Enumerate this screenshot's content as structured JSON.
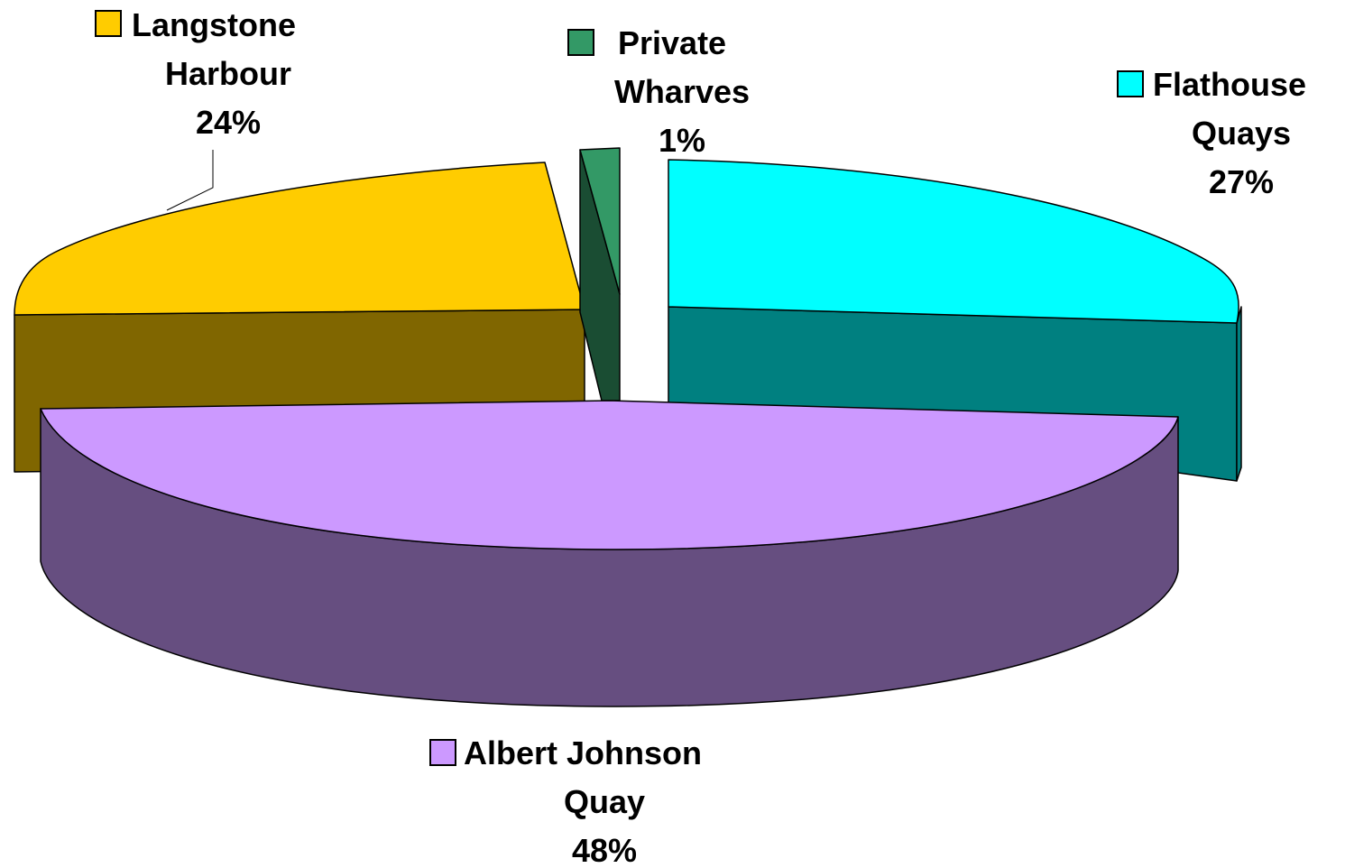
{
  "chart_data": {
    "type": "pie",
    "three_d": true,
    "title": "",
    "slices": [
      {
        "name_lines": [
          "Albert Johnson",
          "Quay"
        ],
        "value": 48,
        "label": "48%",
        "top_color": "#CC99FF",
        "side_color": "#664E80",
        "exploded": true
      },
      {
        "name_lines": [
          "Langstone",
          "Harbour"
        ],
        "value": 24,
        "label": "24%",
        "top_color": "#FFCC00",
        "side_color": "#806600",
        "exploded": false
      },
      {
        "name_lines": [
          "Private",
          "Wharves"
        ],
        "value": 1,
        "label": "1%",
        "top_color": "#339966",
        "side_color": "#1A4D33",
        "exploded": true
      },
      {
        "name_lines": [
          "Flathouse",
          "Quays"
        ],
        "value": 27,
        "label": "27%",
        "top_color": "#00FFFF",
        "side_color": "#008080",
        "exploded": true
      }
    ],
    "legend": "labels-with-swatches"
  }
}
